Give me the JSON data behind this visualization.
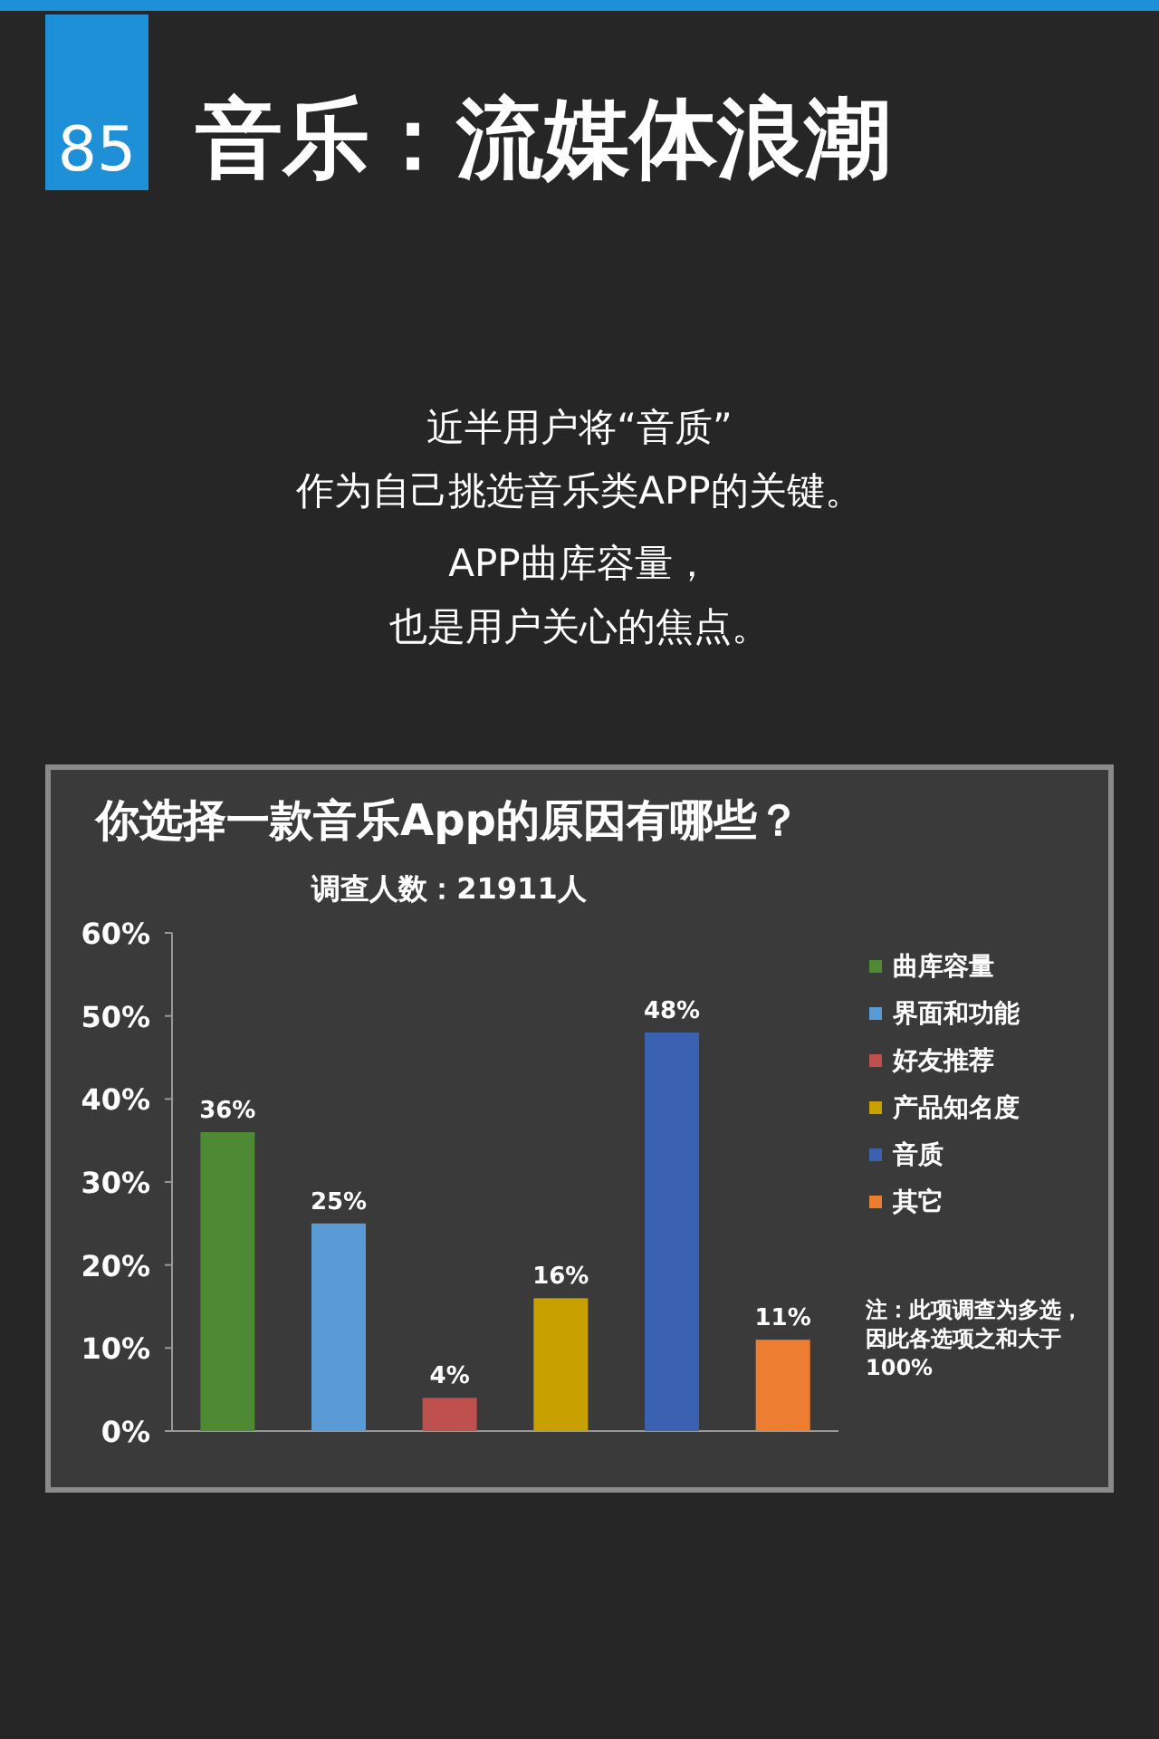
{
  "chart_data": {
    "type": "bar",
    "title": "你选择一款音乐App的原因有哪些？",
    "subtitle": "调查人数：21911人",
    "categories": [
      null,
      null,
      null,
      null,
      null,
      null
    ],
    "series": [
      {
        "name": "曲库容量",
        "color": "#4e8a34",
        "values": [
          36,
          null,
          null,
          null,
          null,
          null
        ],
        "value_labels": [
          "36%",
          null,
          null,
          null,
          null,
          null
        ]
      },
      {
        "name": "界面和功能",
        "color": "#5b9bd5",
        "values": [
          null,
          25,
          null,
          null,
          null,
          null
        ],
        "value_labels": [
          null,
          "25%",
          null,
          null,
          null,
          null
        ]
      },
      {
        "name": "好友推荐",
        "color": "#c0504d",
        "values": [
          null,
          null,
          4,
          null,
          null,
          null
        ],
        "value_labels": [
          null,
          null,
          "4%",
          null,
          null,
          null
        ]
      },
      {
        "name": "产品知名度",
        "color": "#c8a000",
        "values": [
          null,
          null,
          null,
          16,
          null,
          null
        ],
        "value_labels": [
          null,
          null,
          null,
          "16%",
          null,
          null
        ]
      },
      {
        "name": "音质",
        "color": "#3a62b0",
        "values": [
          null,
          null,
          null,
          null,
          48,
          null
        ],
        "value_labels": [
          null,
          null,
          null,
          null,
          "48%",
          null
        ]
      },
      {
        "name": "其它",
        "color": "#ed7d31",
        "values": [
          null,
          null,
          null,
          null,
          null,
          11
        ],
        "value_labels": [
          null,
          null,
          null,
          null,
          null,
          "11%"
        ]
      }
    ],
    "ylim": [
      0,
      60
    ],
    "yticks": [
      {
        "value": 0,
        "label": "0%"
      },
      {
        "value": 10,
        "label": "10%"
      },
      {
        "value": 20,
        "label": "20%"
      },
      {
        "value": 30,
        "label": "30%"
      },
      {
        "value": 40,
        "label": "40%"
      },
      {
        "value": 50,
        "label": "50%"
      },
      {
        "value": 60,
        "label": "60%"
      }
    ],
    "tick_labels": "y",
    "legend": "right",
    "annotations": [
      "85",
      "音乐：流媒体浪潮",
      "近半用户将“音质”",
      "作为自己挑选音乐类APP的关键。",
      "APP曲库容量，",
      "也是用户关心的焦点。",
      "注：此项调查为多选，因此各选项之和大于100%"
    ]
  }
}
